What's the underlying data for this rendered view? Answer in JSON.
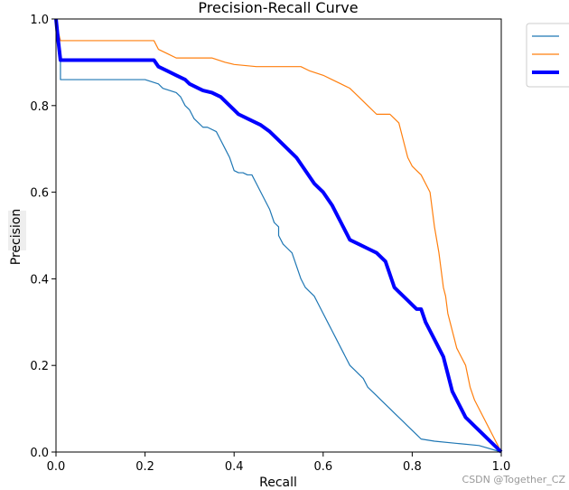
{
  "chart_data": {
    "type": "line",
    "title": "Precision-Recall Curve",
    "xlabel": "Recall",
    "ylabel": "Precision",
    "xlim": [
      0.0,
      1.0
    ],
    "ylim": [
      0.0,
      1.0
    ],
    "xticks": [
      "0.0",
      "0.2",
      "0.4",
      "0.6",
      "0.8",
      "1.0"
    ],
    "yticks": [
      "0.0",
      "0.2",
      "0.4",
      "0.6",
      "0.8",
      "1.0"
    ],
    "grid": false,
    "legend": {
      "position": "outside-top-right",
      "entries": [
        "",
        "",
        ""
      ]
    },
    "series": [
      {
        "name": "",
        "color": "#1f77b4",
        "width": "thin",
        "x": [
          0.0,
          0.005,
          0.01,
          0.01,
          0.02,
          0.05,
          0.1,
          0.15,
          0.2,
          0.23,
          0.24,
          0.27,
          0.28,
          0.29,
          0.3,
          0.31,
          0.32,
          0.33,
          0.34,
          0.36,
          0.37,
          0.38,
          0.39,
          0.4,
          0.41,
          0.42,
          0.43,
          0.44,
          0.45,
          0.46,
          0.48,
          0.49,
          0.5,
          0.5,
          0.51,
          0.52,
          0.53,
          0.54,
          0.55,
          0.56,
          0.57,
          0.58,
          0.59,
          0.6,
          0.61,
          0.62,
          0.63,
          0.64,
          0.65,
          0.66,
          0.67,
          0.68,
          0.69,
          0.7,
          0.71,
          0.72,
          0.73,
          0.74,
          0.75,
          0.76,
          0.77,
          0.78,
          0.79,
          0.8,
          0.81,
          0.82,
          0.85,
          0.9,
          0.95,
          1.0
        ],
        "y": [
          1.0,
          0.95,
          0.9,
          0.86,
          0.86,
          0.86,
          0.86,
          0.86,
          0.86,
          0.85,
          0.84,
          0.83,
          0.82,
          0.8,
          0.79,
          0.77,
          0.76,
          0.75,
          0.75,
          0.74,
          0.72,
          0.7,
          0.68,
          0.65,
          0.645,
          0.645,
          0.64,
          0.64,
          0.62,
          0.6,
          0.56,
          0.53,
          0.52,
          0.5,
          0.48,
          0.47,
          0.46,
          0.43,
          0.4,
          0.38,
          0.37,
          0.36,
          0.34,
          0.32,
          0.3,
          0.28,
          0.26,
          0.24,
          0.22,
          0.2,
          0.19,
          0.18,
          0.17,
          0.15,
          0.14,
          0.13,
          0.12,
          0.11,
          0.1,
          0.09,
          0.08,
          0.07,
          0.06,
          0.05,
          0.04,
          0.03,
          0.025,
          0.02,
          0.015,
          0.0
        ]
      },
      {
        "name": "",
        "color": "#ff7f0e",
        "width": "thin",
        "x": [
          0.0,
          0.005,
          0.01,
          0.01,
          0.05,
          0.1,
          0.15,
          0.2,
          0.22,
          0.23,
          0.25,
          0.27,
          0.3,
          0.35,
          0.38,
          0.4,
          0.45,
          0.5,
          0.55,
          0.57,
          0.6,
          0.62,
          0.64,
          0.66,
          0.68,
          0.7,
          0.72,
          0.73,
          0.74,
          0.75,
          0.77,
          0.78,
          0.79,
          0.8,
          0.81,
          0.82,
          0.83,
          0.84,
          0.85,
          0.86,
          0.87,
          0.875,
          0.88,
          0.885,
          0.89,
          0.895,
          0.9,
          0.91,
          0.92,
          0.93,
          0.94,
          1.0
        ],
        "y": [
          1.0,
          0.97,
          0.95,
          0.95,
          0.95,
          0.95,
          0.95,
          0.95,
          0.95,
          0.93,
          0.92,
          0.91,
          0.91,
          0.91,
          0.9,
          0.895,
          0.89,
          0.89,
          0.89,
          0.88,
          0.87,
          0.86,
          0.85,
          0.84,
          0.82,
          0.8,
          0.78,
          0.78,
          0.78,
          0.78,
          0.76,
          0.72,
          0.68,
          0.66,
          0.65,
          0.64,
          0.62,
          0.6,
          0.52,
          0.46,
          0.38,
          0.36,
          0.32,
          0.3,
          0.28,
          0.26,
          0.24,
          0.22,
          0.2,
          0.15,
          0.12,
          0.0
        ]
      },
      {
        "name": "",
        "color": "#0000ff",
        "width": "thick",
        "x": [
          0.0,
          0.005,
          0.01,
          0.01,
          0.05,
          0.1,
          0.15,
          0.2,
          0.22,
          0.23,
          0.25,
          0.27,
          0.29,
          0.3,
          0.32,
          0.33,
          0.35,
          0.37,
          0.39,
          0.4,
          0.41,
          0.43,
          0.45,
          0.46,
          0.48,
          0.5,
          0.52,
          0.54,
          0.56,
          0.58,
          0.6,
          0.62,
          0.63,
          0.64,
          0.65,
          0.66,
          0.68,
          0.7,
          0.72,
          0.74,
          0.75,
          0.76,
          0.77,
          0.78,
          0.79,
          0.8,
          0.81,
          0.82,
          0.83,
          0.84,
          0.85,
          0.86,
          0.87,
          0.875,
          0.88,
          0.885,
          0.89,
          0.9,
          0.91,
          0.92,
          0.93,
          0.94,
          0.95,
          1.0
        ],
        "y": [
          1.0,
          0.95,
          0.905,
          0.905,
          0.905,
          0.905,
          0.905,
          0.905,
          0.905,
          0.89,
          0.88,
          0.87,
          0.86,
          0.85,
          0.84,
          0.835,
          0.83,
          0.82,
          0.8,
          0.79,
          0.78,
          0.77,
          0.76,
          0.755,
          0.74,
          0.72,
          0.7,
          0.68,
          0.65,
          0.62,
          0.6,
          0.57,
          0.55,
          0.53,
          0.51,
          0.49,
          0.48,
          0.47,
          0.46,
          0.44,
          0.41,
          0.38,
          0.37,
          0.36,
          0.35,
          0.34,
          0.33,
          0.33,
          0.3,
          0.28,
          0.26,
          0.24,
          0.22,
          0.2,
          0.18,
          0.16,
          0.14,
          0.12,
          0.1,
          0.08,
          0.07,
          0.06,
          0.05,
          0.0
        ]
      }
    ]
  },
  "watermark": "CSDN @Together_CZ"
}
